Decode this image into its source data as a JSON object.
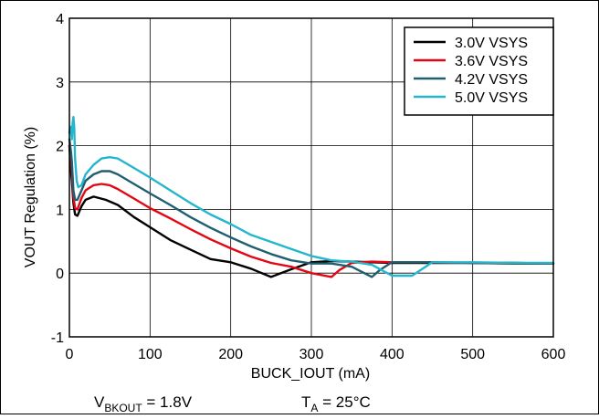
{
  "chart_data": {
    "type": "line",
    "xlabel": "BUCK_IOUT (mA)",
    "ylabel": "VOUT Regulation (%)",
    "xlim": [
      0,
      600
    ],
    "ylim": [
      -1,
      4
    ],
    "x_ticks": [
      0,
      100,
      200,
      300,
      400,
      500,
      600
    ],
    "y_ticks": [
      -1,
      0,
      1,
      2,
      3,
      4
    ],
    "grid": true,
    "legend_position": "top-right",
    "footnote": {
      "vbk_main": "V",
      "vbk_sub": "BKOUT",
      "vbk_rest": " = 1.8V",
      "ta_main": "T",
      "ta_sub": "A",
      "ta_rest": " = 25°C"
    },
    "series": [
      {
        "name": "3.0V VSYS",
        "color": "#000000",
        "points": [
          [
            0,
            2.0
          ],
          [
            1,
            1.8
          ],
          [
            2,
            1.6
          ],
          [
            3,
            1.45
          ],
          [
            5,
            1.1
          ],
          [
            7,
            0.92
          ],
          [
            10,
            0.9
          ],
          [
            15,
            1.05
          ],
          [
            20,
            1.15
          ],
          [
            30,
            1.2
          ],
          [
            45,
            1.15
          ],
          [
            60,
            1.07
          ],
          [
            80,
            0.88
          ],
          [
            100,
            0.72
          ],
          [
            125,
            0.52
          ],
          [
            150,
            0.37
          ],
          [
            175,
            0.22
          ],
          [
            200,
            0.17
          ],
          [
            225,
            0.07
          ],
          [
            250,
            -0.06
          ],
          [
            275,
            0.06
          ],
          [
            300,
            0.17
          ],
          [
            325,
            0.19
          ],
          [
            350,
            0.18
          ],
          [
            400,
            0.16
          ],
          [
            450,
            0.16
          ],
          [
            500,
            0.16
          ],
          [
            550,
            0.15
          ],
          [
            600,
            0.15
          ]
        ]
      },
      {
        "name": "3.6V VSYS",
        "color": "#e30613",
        "points": [
          [
            0,
            2.0
          ],
          [
            1,
            1.9
          ],
          [
            2,
            1.8
          ],
          [
            3,
            1.6
          ],
          [
            5,
            1.2
          ],
          [
            7,
            1.02
          ],
          [
            10,
            1.0
          ],
          [
            15,
            1.18
          ],
          [
            20,
            1.3
          ],
          [
            30,
            1.38
          ],
          [
            40,
            1.4
          ],
          [
            50,
            1.38
          ],
          [
            60,
            1.32
          ],
          [
            80,
            1.17
          ],
          [
            100,
            1.02
          ],
          [
            125,
            0.86
          ],
          [
            150,
            0.69
          ],
          [
            175,
            0.53
          ],
          [
            200,
            0.39
          ],
          [
            225,
            0.26
          ],
          [
            250,
            0.16
          ],
          [
            275,
            0.1
          ],
          [
            300,
            0.0
          ],
          [
            325,
            -0.06
          ],
          [
            335,
            0.05
          ],
          [
            350,
            0.16
          ],
          [
            375,
            0.18
          ],
          [
            400,
            0.17
          ],
          [
            450,
            0.17
          ],
          [
            500,
            0.16
          ],
          [
            550,
            0.16
          ],
          [
            600,
            0.15
          ]
        ]
      },
      {
        "name": "4.2V VSYS",
        "color": "#1f5f70",
        "points": [
          [
            0,
            2.1
          ],
          [
            1,
            2.0
          ],
          [
            2,
            1.9
          ],
          [
            3,
            1.75
          ],
          [
            5,
            1.3
          ],
          [
            7,
            1.15
          ],
          [
            10,
            1.15
          ],
          [
            15,
            1.3
          ],
          [
            20,
            1.45
          ],
          [
            30,
            1.55
          ],
          [
            40,
            1.6
          ],
          [
            50,
            1.6
          ],
          [
            60,
            1.55
          ],
          [
            80,
            1.4
          ],
          [
            100,
            1.25
          ],
          [
            125,
            1.07
          ],
          [
            150,
            0.88
          ],
          [
            175,
            0.71
          ],
          [
            200,
            0.56
          ],
          [
            225,
            0.42
          ],
          [
            250,
            0.3
          ],
          [
            275,
            0.2
          ],
          [
            300,
            0.15
          ],
          [
            325,
            0.15
          ],
          [
            350,
            0.1
          ],
          [
            375,
            -0.06
          ],
          [
            385,
            0.05
          ],
          [
            400,
            0.17
          ],
          [
            450,
            0.17
          ],
          [
            500,
            0.16
          ],
          [
            550,
            0.16
          ],
          [
            600,
            0.15
          ]
        ]
      },
      {
        "name": "5.0V VSYS",
        "color": "#23b6cc",
        "points": [
          [
            0,
            2.2
          ],
          [
            1,
            2.3
          ],
          [
            2,
            2.25
          ],
          [
            3,
            2.1
          ],
          [
            4,
            2.35
          ],
          [
            5,
            2.45
          ],
          [
            6,
            2.3
          ],
          [
            7,
            1.8
          ],
          [
            9,
            1.45
          ],
          [
            11,
            1.35
          ],
          [
            15,
            1.38
          ],
          [
            20,
            1.55
          ],
          [
            30,
            1.7
          ],
          [
            40,
            1.8
          ],
          [
            50,
            1.82
          ],
          [
            60,
            1.8
          ],
          [
            80,
            1.65
          ],
          [
            100,
            1.5
          ],
          [
            125,
            1.3
          ],
          [
            150,
            1.1
          ],
          [
            175,
            0.92
          ],
          [
            200,
            0.77
          ],
          [
            225,
            0.6
          ],
          [
            250,
            0.49
          ],
          [
            275,
            0.38
          ],
          [
            300,
            0.27
          ],
          [
            325,
            0.2
          ],
          [
            350,
            0.18
          ],
          [
            375,
            0.13
          ],
          [
            400,
            -0.04
          ],
          [
            425,
            -0.04
          ],
          [
            450,
            0.17
          ],
          [
            500,
            0.17
          ],
          [
            550,
            0.16
          ],
          [
            600,
            0.16
          ]
        ]
      }
    ]
  }
}
